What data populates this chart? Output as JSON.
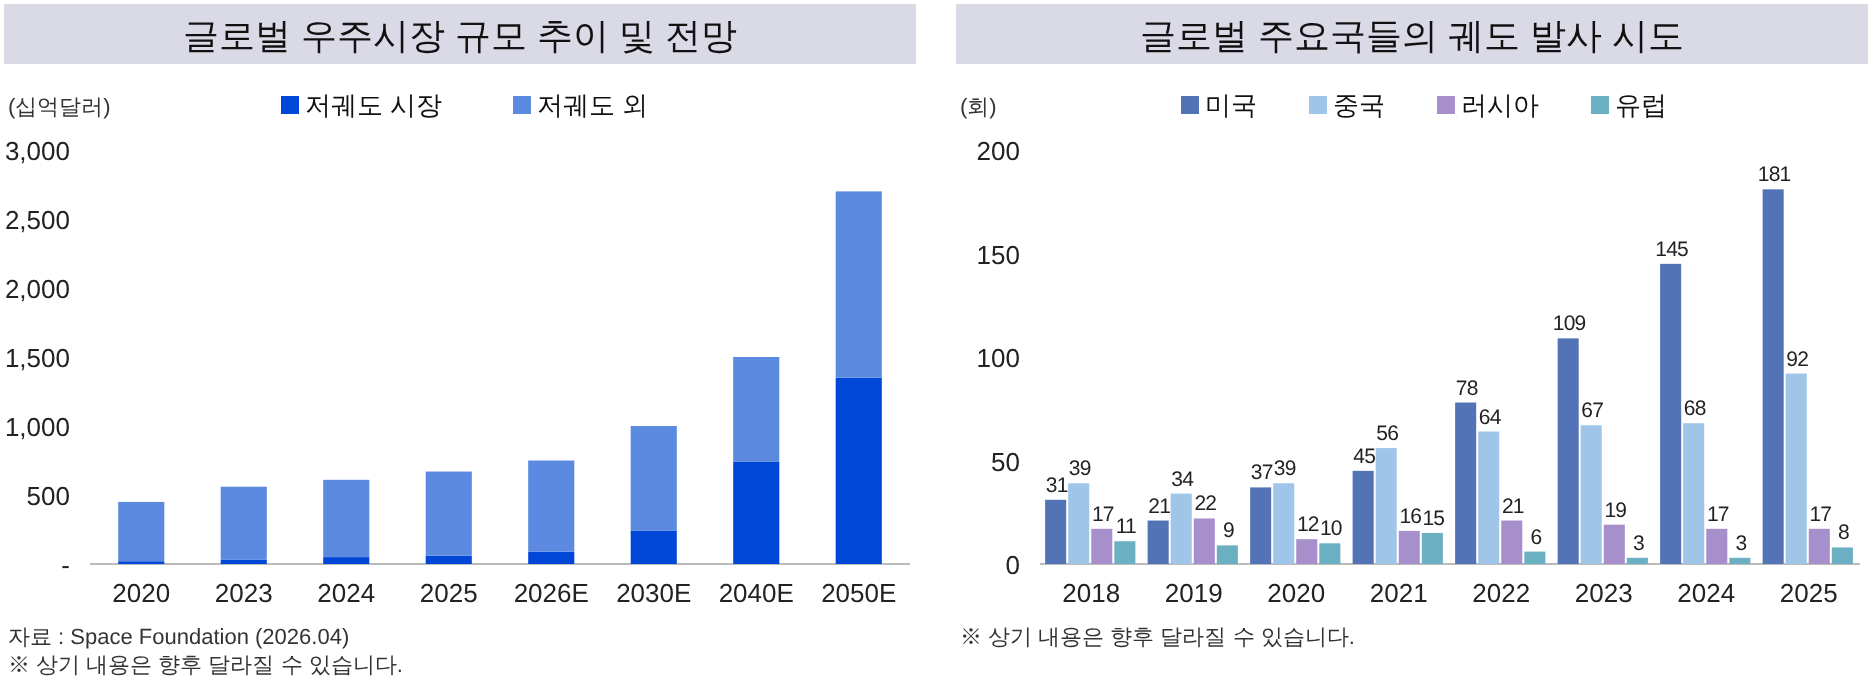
{
  "chart_data": [
    {
      "type": "bar",
      "title": "글로벌 우주시장 규모 추이 및 전망",
      "ylabel": "(십억달러)",
      "stacked": true,
      "legend": "top",
      "categories": [
        "2020",
        "2023",
        "2024",
        "2025",
        "2026E",
        "2030E",
        "2040E",
        "2050E"
      ],
      "series": [
        {
          "name": "저궤도 시장",
          "color": "#0047d8",
          "values": [
            20,
            30,
            50,
            60,
            90,
            240,
            740,
            1350
          ]
        },
        {
          "name": "저궤도 외",
          "color": "#5b8ae0",
          "values": [
            430,
            530,
            560,
            610,
            660,
            760,
            760,
            1350
          ]
        }
      ],
      "ylim": [
        0,
        3000
      ],
      "yticks": [
        {
          "value": 0,
          "label": "-"
        },
        500,
        {
          "value": 1000,
          "label": "1,000"
        },
        {
          "value": 1500,
          "label": "1,500"
        },
        {
          "value": 2000,
          "label": "2,000"
        },
        {
          "value": 2500,
          "label": "2,500"
        },
        {
          "value": 3000,
          "label": "3,000"
        }
      ],
      "annotations": [
        "자료 : Space Foundation (2026.04)",
        "※ 상기 내용은 향후 달라질 수 있습니다."
      ]
    },
    {
      "type": "bar",
      "title": "글로벌 주요국들의 궤도 발사 시도",
      "ylabel": "(회)",
      "legend": "top",
      "data_labels": true,
      "categories": [
        "2018",
        "2019",
        "2020",
        "2021",
        "2022",
        "2023",
        "2024",
        "2025"
      ],
      "series": [
        {
          "name": "미국",
          "color": "#5273b6",
          "values": [
            31,
            21,
            37,
            45,
            78,
            109,
            145,
            181
          ]
        },
        {
          "name": "중국",
          "color": "#9fc5e8",
          "values": [
            39,
            34,
            39,
            56,
            64,
            67,
            68,
            92
          ]
        },
        {
          "name": "러시아",
          "color": "#a68fcb",
          "values": [
            17,
            22,
            12,
            16,
            21,
            19,
            17,
            17
          ]
        },
        {
          "name": "유럽",
          "color": "#6aafc2",
          "values": [
            11,
            9,
            10,
            15,
            6,
            3,
            3,
            8
          ]
        }
      ],
      "ylim": [
        0,
        200
      ],
      "yticks": [
        0,
        50,
        100,
        150,
        200
      ],
      "annotations": [
        "※ 상기 내용은 향후 달라질 수 있습니다."
      ]
    }
  ]
}
